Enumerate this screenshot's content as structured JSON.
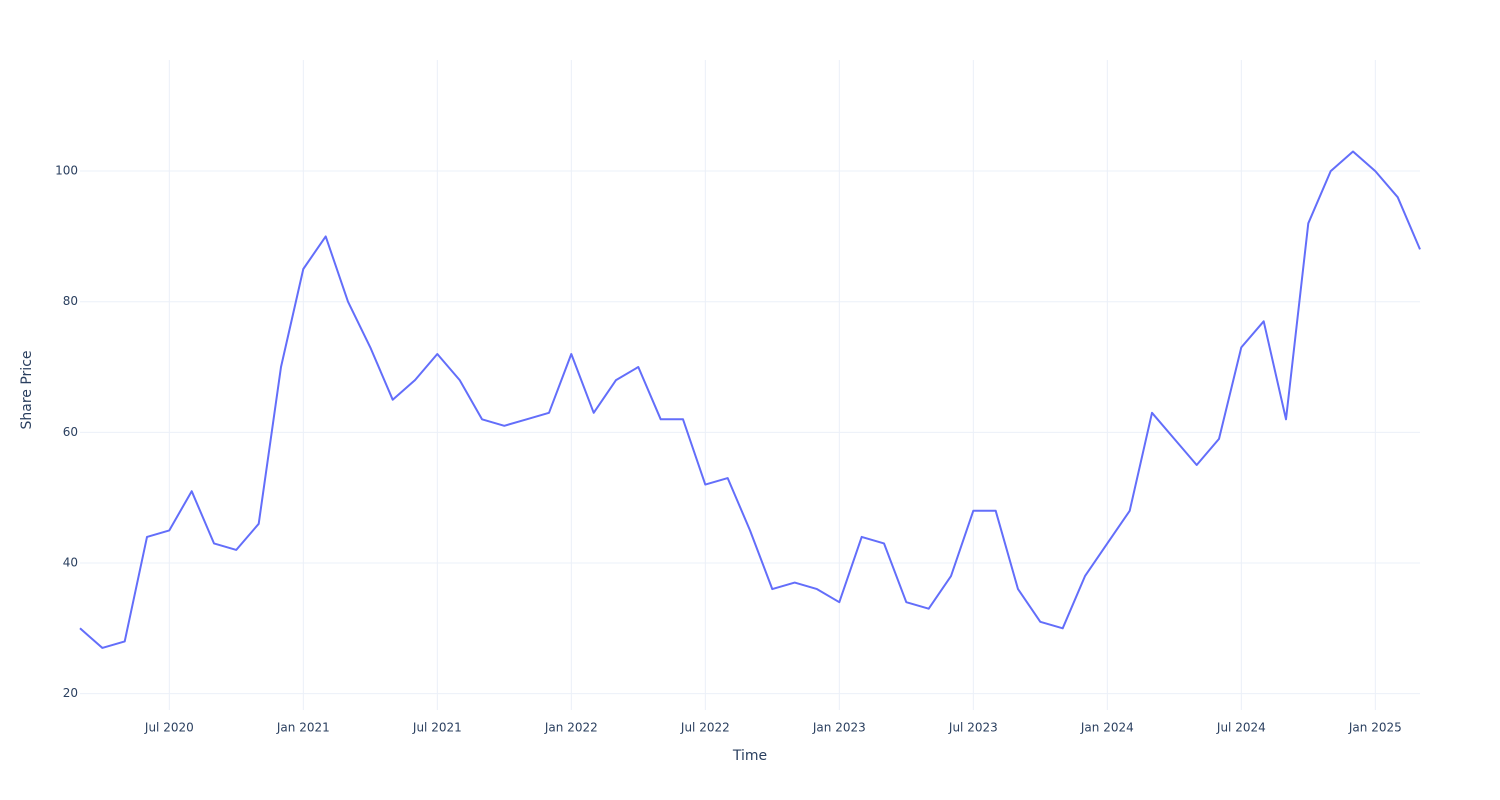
{
  "chart_data": {
    "type": "line",
    "xlabel": "Time",
    "ylabel": "Share Price",
    "x": [
      "2020-03",
      "2020-04",
      "2020-05",
      "2020-06",
      "2020-07",
      "2020-08",
      "2020-09",
      "2020-10",
      "2020-11",
      "2020-12",
      "2021-01",
      "2021-02",
      "2021-03",
      "2021-04",
      "2021-05",
      "2021-06",
      "2021-07",
      "2021-08",
      "2021-09",
      "2021-10",
      "2021-11",
      "2021-12",
      "2022-01",
      "2022-02",
      "2022-03",
      "2022-04",
      "2022-05",
      "2022-06",
      "2022-07",
      "2022-08",
      "2022-09",
      "2022-10",
      "2022-11",
      "2022-12",
      "2023-01",
      "2023-02",
      "2023-03",
      "2023-04",
      "2023-05",
      "2023-06",
      "2023-07",
      "2023-08",
      "2023-09",
      "2023-10",
      "2023-11",
      "2023-12",
      "2024-01",
      "2024-02",
      "2024-03",
      "2024-04",
      "2024-05",
      "2024-06",
      "2024-07",
      "2024-08",
      "2024-09",
      "2024-10",
      "2024-11",
      "2024-12",
      "2025-01",
      "2025-02",
      "2025-03"
    ],
    "values": [
      30,
      27,
      28,
      44,
      45,
      51,
      43,
      42,
      46,
      70,
      85,
      90,
      80,
      73,
      65,
      68,
      72,
      68,
      62,
      61,
      62,
      63,
      72,
      63,
      68,
      70,
      62,
      62,
      52,
      53,
      45,
      36,
      37,
      36,
      34,
      44,
      43,
      34,
      33,
      38,
      48,
      48,
      36,
      31,
      30,
      38,
      43,
      48,
      63,
      59,
      55,
      59,
      73,
      77,
      62,
      92,
      100,
      103,
      100,
      96,
      88
    ],
    "color": "#636efa",
    "xlim": [
      "2020-03",
      "2025-03"
    ],
    "xticks": [
      {
        "value": "2020-07",
        "label": "Jul 2020"
      },
      {
        "value": "2021-01",
        "label": "Jan 2021"
      },
      {
        "value": "2021-07",
        "label": "Jul 2021"
      },
      {
        "value": "2022-01",
        "label": "Jan 2022"
      },
      {
        "value": "2022-07",
        "label": "Jul 2022"
      },
      {
        "value": "2023-01",
        "label": "Jan 2023"
      },
      {
        "value": "2023-07",
        "label": "Jul 2023"
      },
      {
        "value": "2024-01",
        "label": "Jan 2024"
      },
      {
        "value": "2024-07",
        "label": "Jul 2024"
      },
      {
        "value": "2025-01",
        "label": "Jan 2025"
      }
    ],
    "ylim": [
      17.5,
      117
    ],
    "yticks": [
      20,
      40,
      60,
      80,
      100
    ],
    "grid": true
  }
}
